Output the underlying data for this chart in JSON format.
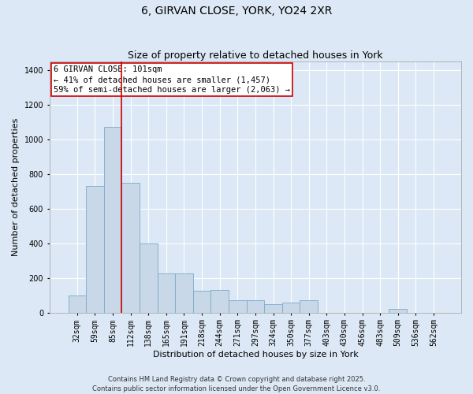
{
  "title1": "6, GIRVAN CLOSE, YORK, YO24 2XR",
  "title2": "Size of property relative to detached houses in York",
  "xlabel": "Distribution of detached houses by size in York",
  "ylabel": "Number of detached properties",
  "categories": [
    "32sqm",
    "59sqm",
    "85sqm",
    "112sqm",
    "138sqm",
    "165sqm",
    "191sqm",
    "218sqm",
    "244sqm",
    "271sqm",
    "297sqm",
    "324sqm",
    "350sqm",
    "377sqm",
    "403sqm",
    "430sqm",
    "456sqm",
    "483sqm",
    "509sqm",
    "536sqm",
    "562sqm"
  ],
  "values": [
    100,
    730,
    1075,
    750,
    400,
    225,
    225,
    125,
    130,
    70,
    70,
    50,
    55,
    70,
    0,
    0,
    0,
    0,
    20,
    0,
    0
  ],
  "bar_color": "#c8d8e8",
  "bar_edge_color": "#7aaaca",
  "vline_x_index": 3,
  "vline_color": "#cc0000",
  "annotation_line1": "6 GIRVAN CLOSE: 101sqm",
  "annotation_line2": "← 41% of detached houses are smaller (1,457)",
  "annotation_line3": "59% of semi-detached houses are larger (2,063) →",
  "ylim": [
    0,
    1450
  ],
  "yticks": [
    0,
    200,
    400,
    600,
    800,
    1000,
    1200,
    1400
  ],
  "bg_color": "#dce8f5",
  "plot_bg_color": "#dce8f5",
  "grid_color": "#ffffff",
  "footer_text": "Contains HM Land Registry data © Crown copyright and database right 2025.\nContains public sector information licensed under the Open Government Licence v3.0.",
  "title_fontsize": 10,
  "subtitle_fontsize": 9,
  "axis_label_fontsize": 8,
  "tick_fontsize": 7,
  "annotation_fontsize": 7.5,
  "footer_fontsize": 6
}
